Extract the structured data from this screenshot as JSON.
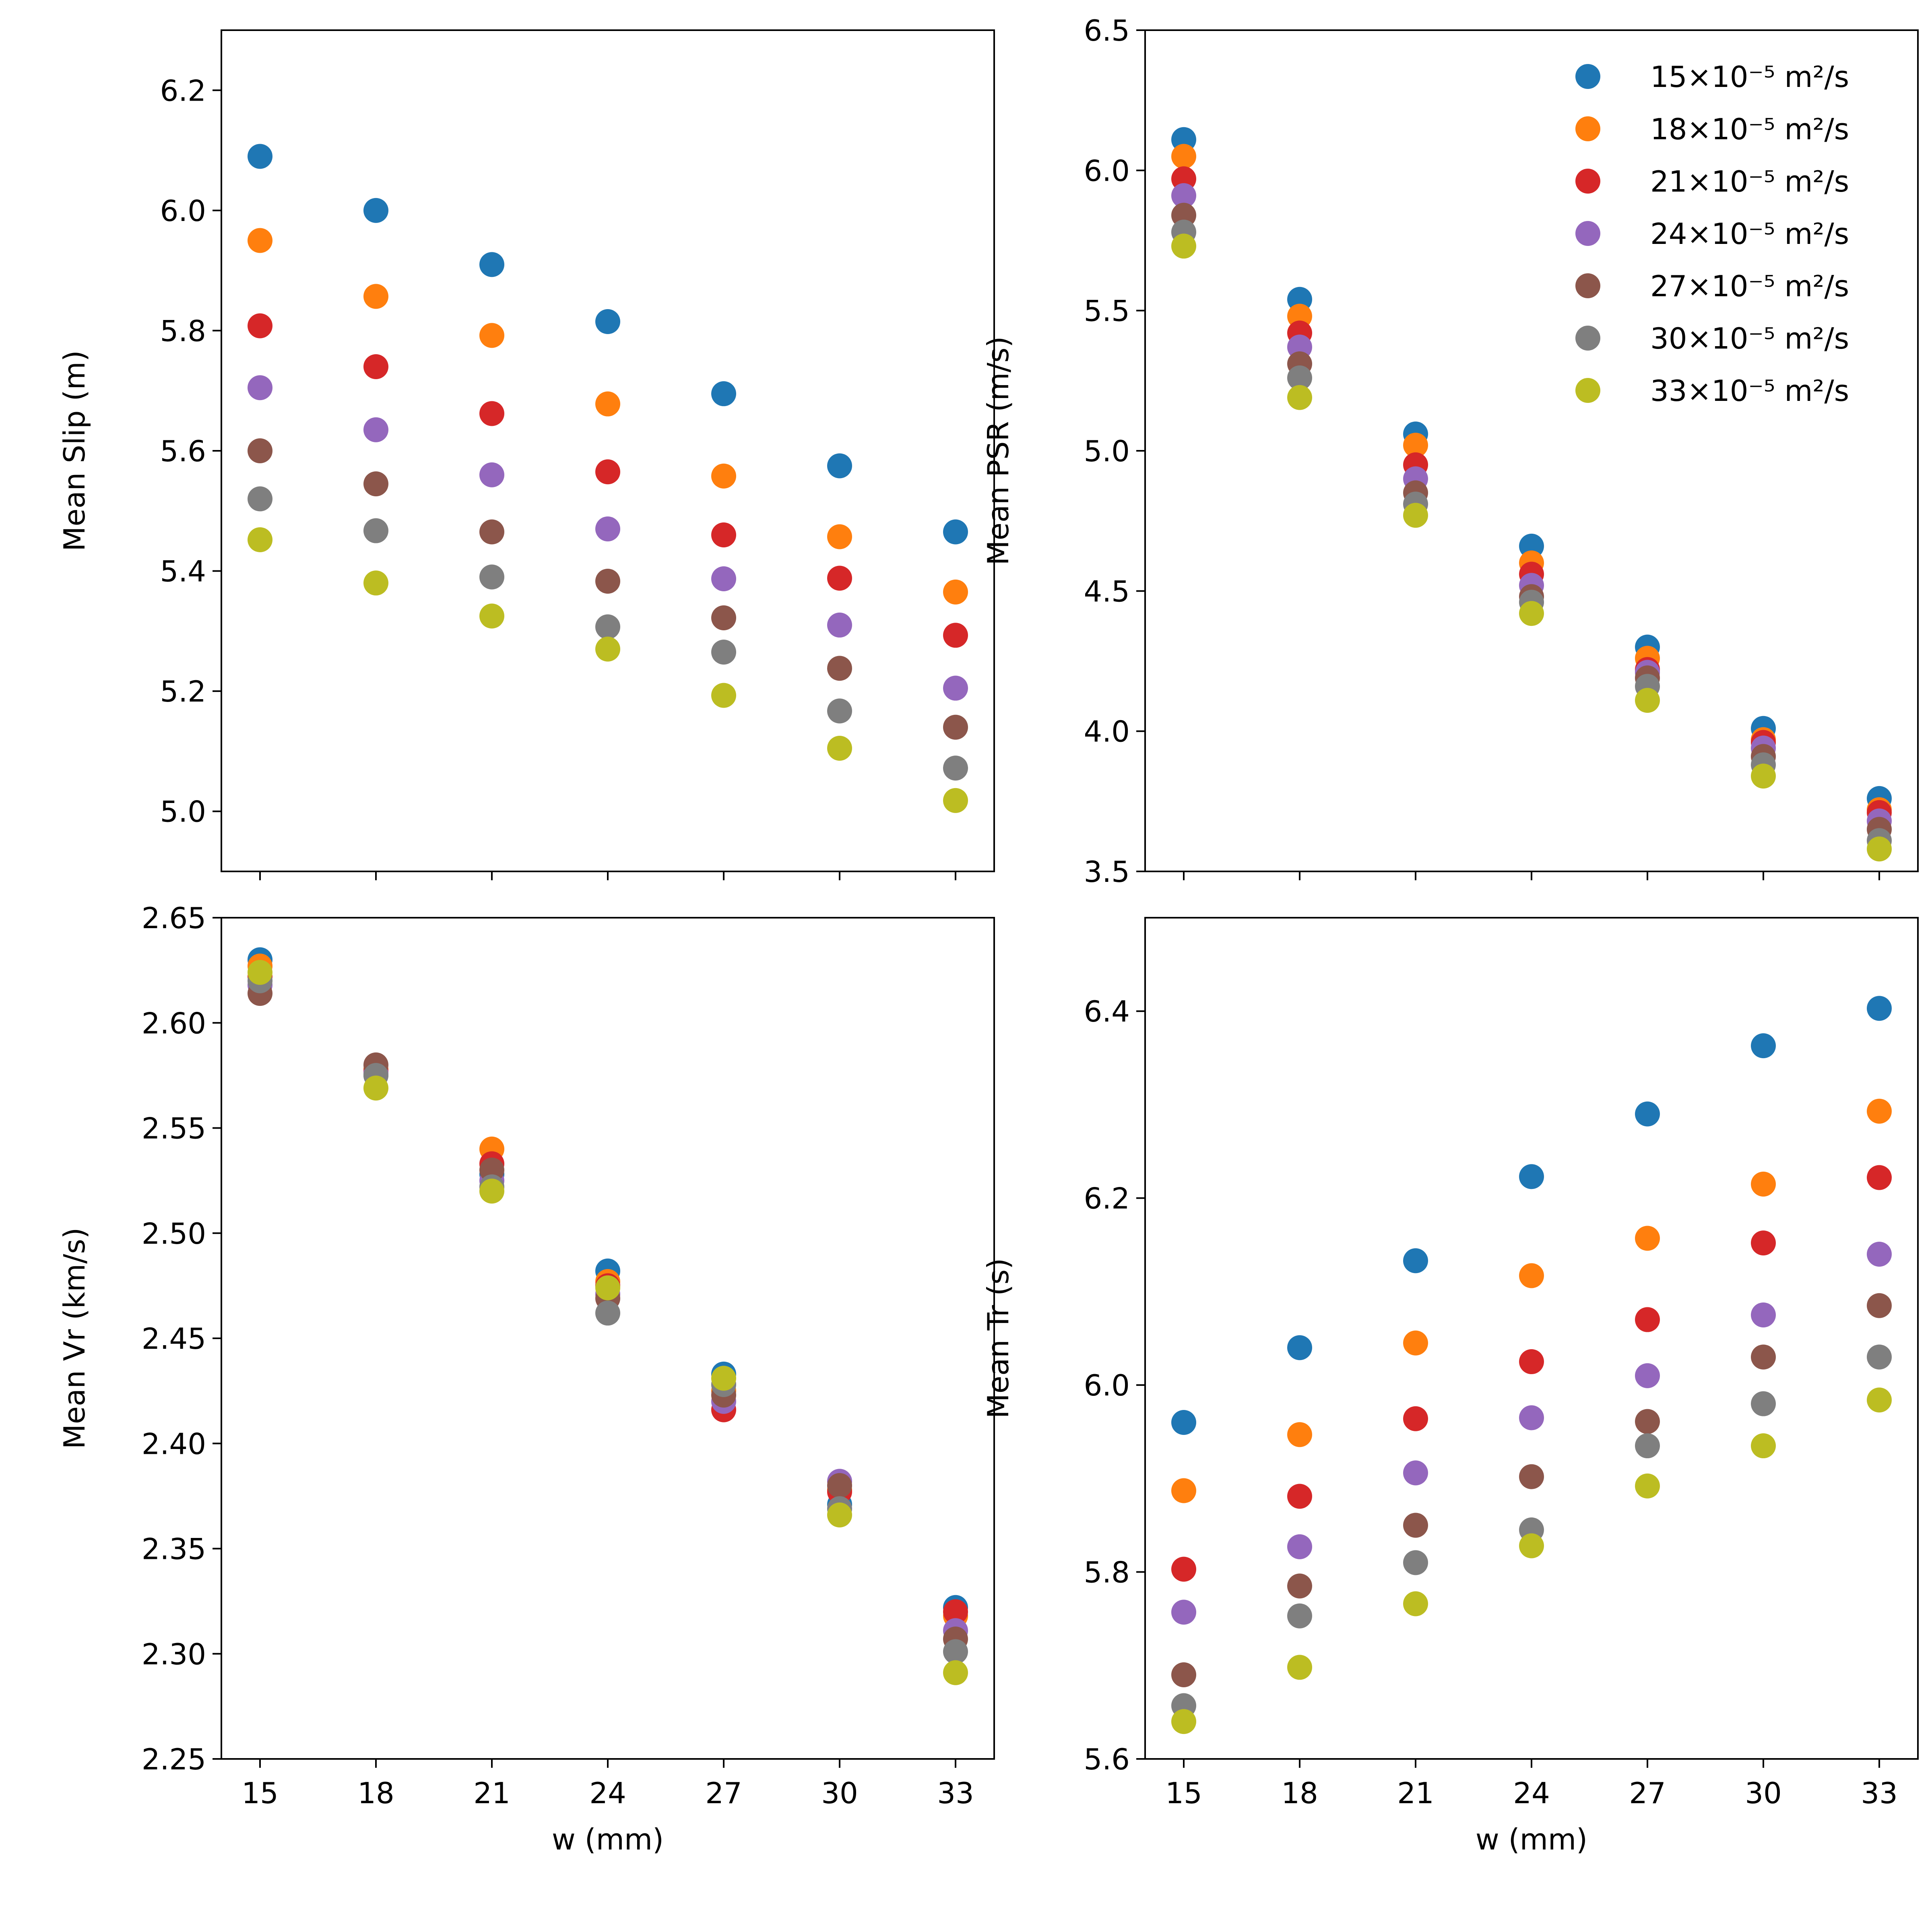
{
  "series_labels": [
    "15×10⁻⁵ m²/s",
    "18×10⁻⁵ m²/s",
    "21×10⁻⁵ m²/s",
    "24×10⁻⁵ m²/s",
    "27×10⁻⁵ m²/s",
    "30×10⁻⁵ m²/s",
    "33×10⁻⁵ m²/s"
  ],
  "colors": [
    "#1f77b4",
    "#ff7f0e",
    "#d62728",
    "#9467bd",
    "#8c564b",
    "#7f7f7f",
    "#bcbd22"
  ],
  "chart_data": [
    {
      "type": "scatter",
      "ylabel": "Mean Slip (m)",
      "xlabel": "",
      "x": [
        15,
        18,
        21,
        24,
        27,
        30,
        33
      ],
      "xlim": [
        14,
        34
      ],
      "ylim": [
        4.9,
        6.3
      ],
      "yticks": [
        5.0,
        5.2,
        5.4,
        5.6,
        5.8,
        6.0,
        6.2
      ],
      "ytick_labels": [
        "5.0",
        "5.2",
        "5.4",
        "5.6",
        "5.8",
        "6.0",
        "6.2"
      ],
      "xticks_labeled": false,
      "legend": false,
      "series": [
        {
          "values": [
            6.09,
            6.0,
            5.91,
            5.815,
            5.695,
            5.575,
            5.465
          ]
        },
        {
          "values": [
            5.95,
            5.857,
            5.792,
            5.678,
            5.558,
            5.457,
            5.365
          ]
        },
        {
          "values": [
            5.808,
            5.74,
            5.662,
            5.565,
            5.46,
            5.388,
            5.293
          ]
        },
        {
          "values": [
            5.705,
            5.635,
            5.56,
            5.47,
            5.387,
            5.31,
            5.205
          ]
        },
        {
          "values": [
            5.6,
            5.545,
            5.465,
            5.383,
            5.322,
            5.238,
            5.14
          ]
        },
        {
          "values": [
            5.52,
            5.467,
            5.39,
            5.307,
            5.265,
            5.167,
            5.072
          ]
        },
        {
          "values": [
            5.452,
            5.38,
            5.325,
            5.27,
            5.193,
            5.105,
            5.018
          ]
        }
      ]
    },
    {
      "type": "scatter",
      "ylabel": "Mean PSR (m/s)",
      "xlabel": "",
      "x": [
        15,
        18,
        21,
        24,
        27,
        30,
        33
      ],
      "xlim": [
        14,
        34
      ],
      "ylim": [
        3.5,
        6.5
      ],
      "yticks": [
        3.5,
        4.0,
        4.5,
        5.0,
        5.5,
        6.0,
        6.5
      ],
      "ytick_labels": [
        "3.5",
        "4.0",
        "4.5",
        "5.0",
        "5.5",
        "6.0",
        "6.5"
      ],
      "xticks_labeled": false,
      "legend": true,
      "legend_position": "top-right",
      "series": [
        {
          "values": [
            6.11,
            5.54,
            5.06,
            4.66,
            4.3,
            4.01,
            3.76
          ]
        },
        {
          "values": [
            6.05,
            5.48,
            5.02,
            4.6,
            4.26,
            3.97,
            3.72
          ]
        },
        {
          "values": [
            5.97,
            5.42,
            4.95,
            4.56,
            4.22,
            3.96,
            3.71
          ]
        },
        {
          "values": [
            5.91,
            5.37,
            4.9,
            4.52,
            4.21,
            3.94,
            3.68
          ]
        },
        {
          "values": [
            5.84,
            5.31,
            4.85,
            4.48,
            4.19,
            3.91,
            3.65
          ]
        },
        {
          "values": [
            5.78,
            5.26,
            4.81,
            4.46,
            4.16,
            3.88,
            3.61
          ]
        },
        {
          "values": [
            5.73,
            5.19,
            4.77,
            4.42,
            4.11,
            3.84,
            3.58
          ]
        }
      ]
    },
    {
      "type": "scatter",
      "ylabel": "Mean Vr (km/s)",
      "xlabel": "w (mm)",
      "x": [
        15,
        18,
        21,
        24,
        27,
        30,
        33
      ],
      "xlim": [
        14,
        34
      ],
      "ylim": [
        2.25,
        2.65
      ],
      "yticks": [
        2.25,
        2.3,
        2.35,
        2.4,
        2.45,
        2.5,
        2.55,
        2.6,
        2.65
      ],
      "ytick_labels": [
        "2.25",
        "2.30",
        "2.35",
        "2.40",
        "2.45",
        "2.50",
        "2.55",
        "2.60",
        "2.65"
      ],
      "xticks_labeled": true,
      "xtick_labels": [
        "15",
        "18",
        "21",
        "24",
        "27",
        "30",
        "33"
      ],
      "legend": false,
      "series": [
        {
          "values": [
            2.63,
            2.575,
            2.528,
            2.482,
            2.433,
            2.371,
            2.322
          ]
        },
        {
          "values": [
            2.627,
            2.578,
            2.54,
            2.477,
            2.425,
            2.378,
            2.318
          ]
        },
        {
          "values": [
            2.622,
            2.577,
            2.533,
            2.475,
            2.416,
            2.377,
            2.32
          ]
        },
        {
          "values": [
            2.618,
            2.576,
            2.525,
            2.471,
            2.42,
            2.382,
            2.311
          ]
        },
        {
          "values": [
            2.614,
            2.58,
            2.53,
            2.469,
            2.423,
            2.38,
            2.307
          ]
        },
        {
          "values": [
            2.62,
            2.575,
            2.522,
            2.462,
            2.428,
            2.369,
            2.301
          ]
        },
        {
          "values": [
            2.624,
            2.569,
            2.52,
            2.474,
            2.431,
            2.366,
            2.291
          ]
        }
      ]
    },
    {
      "type": "scatter",
      "ylabel": "Mean Tr (s)",
      "xlabel": "w (mm)",
      "x": [
        15,
        18,
        21,
        24,
        27,
        30,
        33
      ],
      "xlim": [
        14,
        34
      ],
      "ylim": [
        5.6,
        6.5
      ],
      "yticks": [
        5.6,
        5.8,
        6.0,
        6.2,
        6.4
      ],
      "ytick_labels": [
        "5.6",
        "5.8",
        "6.0",
        "6.2",
        "6.4"
      ],
      "xticks_labeled": true,
      "xtick_labels": [
        "15",
        "18",
        "21",
        "24",
        "27",
        "30",
        "33"
      ],
      "legend": false,
      "series": [
        {
          "values": [
            5.96,
            6.04,
            6.133,
            6.223,
            6.29,
            6.363,
            6.403
          ]
        },
        {
          "values": [
            5.887,
            5.947,
            6.045,
            6.117,
            6.157,
            6.215,
            6.293
          ]
        },
        {
          "values": [
            5.803,
            5.881,
            5.964,
            6.025,
            6.07,
            6.152,
            6.222
          ]
        },
        {
          "values": [
            5.757,
            5.827,
            5.906,
            5.965,
            6.01,
            6.075,
            6.14
          ]
        },
        {
          "values": [
            5.69,
            5.785,
            5.85,
            5.902,
            5.961,
            6.03,
            6.085
          ]
        },
        {
          "values": [
            5.657,
            5.753,
            5.81,
            5.845,
            5.935,
            5.98,
            6.03
          ]
        },
        {
          "values": [
            5.64,
            5.698,
            5.766,
            5.828,
            5.892,
            5.935,
            5.984
          ]
        }
      ]
    }
  ]
}
